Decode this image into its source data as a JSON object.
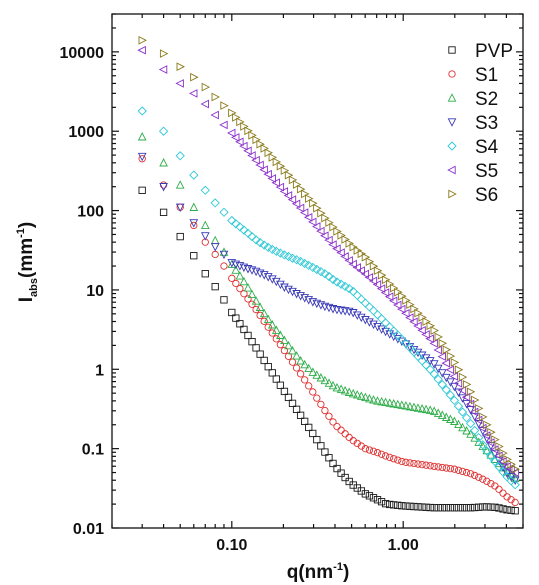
{
  "chart_data": {
    "type": "scatter",
    "x_scale": "log",
    "y_scale": "log",
    "xlabel": {
      "main": "q(nm",
      "sup": "-1",
      "end": ")"
    },
    "ylabel": {
      "main": "I",
      "sub": "abs",
      "mid": "(mm",
      "sup": "-1",
      "end": ")"
    },
    "xlim": [
      0.02,
      5
    ],
    "ylim": [
      0.01,
      30000
    ],
    "x_ticks": [
      {
        "value": 0.1,
        "label": "0.10"
      },
      {
        "value": 1,
        "label": "1.00"
      }
    ],
    "y_ticks": [
      {
        "value": 0.01,
        "label": "0.01"
      },
      {
        "value": 0.1,
        "label": "0.1"
      },
      {
        "value": 1,
        "label": "1"
      },
      {
        "value": 10,
        "label": "10"
      },
      {
        "value": 100,
        "label": "100"
      },
      {
        "value": 1000,
        "label": "1000"
      },
      {
        "value": 10000,
        "label": "10000"
      }
    ],
    "grid": false,
    "legend_position": "top-right",
    "series": [
      {
        "name": "PVP",
        "color": "#1a1a1a",
        "marker": "square",
        "points": [
          [
            0.03,
            180
          ],
          [
            0.04,
            95
          ],
          [
            0.05,
            47
          ],
          [
            0.06,
            27
          ],
          [
            0.07,
            16
          ],
          [
            0.08,
            11
          ],
          [
            0.09,
            7.5
          ],
          [
            0.1,
            5.2
          ],
          [
            0.12,
            3.0
          ],
          [
            0.14,
            1.8
          ],
          [
            0.16,
            1.15
          ],
          [
            0.18,
            0.78
          ],
          [
            0.2,
            0.55
          ],
          [
            0.25,
            0.27
          ],
          [
            0.3,
            0.15
          ],
          [
            0.35,
            0.09
          ],
          [
            0.4,
            0.06
          ],
          [
            0.45,
            0.045
          ],
          [
            0.5,
            0.036
          ],
          [
            0.6,
            0.027
          ],
          [
            0.7,
            0.023
          ],
          [
            0.8,
            0.02
          ],
          [
            1.0,
            0.019
          ],
          [
            1.5,
            0.018
          ],
          [
            2.0,
            0.018
          ],
          [
            2.5,
            0.018
          ],
          [
            3.0,
            0.0185
          ],
          [
            3.5,
            0.0182
          ],
          [
            4.0,
            0.017
          ],
          [
            4.5,
            0.0165
          ]
        ]
      },
      {
        "name": "S1",
        "color": "#e03030",
        "marker": "circle",
        "points": [
          [
            0.03,
            450
          ],
          [
            0.04,
            210
          ],
          [
            0.05,
            110
          ],
          [
            0.06,
            65
          ],
          [
            0.07,
            40
          ],
          [
            0.08,
            28
          ],
          [
            0.09,
            20
          ],
          [
            0.1,
            14
          ],
          [
            0.12,
            8.5
          ],
          [
            0.14,
            5.5
          ],
          [
            0.16,
            3.6
          ],
          [
            0.18,
            2.5
          ],
          [
            0.2,
            1.8
          ],
          [
            0.25,
            0.9
          ],
          [
            0.3,
            0.5
          ],
          [
            0.35,
            0.3
          ],
          [
            0.4,
            0.2
          ],
          [
            0.5,
            0.13
          ],
          [
            0.6,
            0.1
          ],
          [
            0.7,
            0.09
          ],
          [
            0.8,
            0.08
          ],
          [
            1.0,
            0.068
          ],
          [
            1.5,
            0.06
          ],
          [
            2.0,
            0.055
          ],
          [
            2.5,
            0.048
          ],
          [
            3.0,
            0.04
          ],
          [
            3.5,
            0.033
          ],
          [
            4.0,
            0.025
          ],
          [
            4.5,
            0.021
          ]
        ]
      },
      {
        "name": "S2",
        "color": "#2fae4a",
        "marker": "triangle-up",
        "points": [
          [
            0.03,
            850
          ],
          [
            0.04,
            400
          ],
          [
            0.05,
            210
          ],
          [
            0.06,
            110
          ],
          [
            0.07,
            65
          ],
          [
            0.08,
            42
          ],
          [
            0.09,
            30
          ],
          [
            0.1,
            21
          ],
          [
            0.12,
            12
          ],
          [
            0.14,
            7
          ],
          [
            0.16,
            4.5
          ],
          [
            0.18,
            3.2
          ],
          [
            0.2,
            2.4
          ],
          [
            0.25,
            1.3
          ],
          [
            0.3,
            0.9
          ],
          [
            0.35,
            0.72
          ],
          [
            0.4,
            0.6
          ],
          [
            0.5,
            0.5
          ],
          [
            0.7,
            0.4
          ],
          [
            1.0,
            0.35
          ],
          [
            1.5,
            0.3
          ],
          [
            2.0,
            0.22
          ],
          [
            2.5,
            0.15
          ],
          [
            3.0,
            0.1
          ],
          [
            3.5,
            0.07
          ],
          [
            4.0,
            0.052
          ],
          [
            4.5,
            0.042
          ]
        ]
      },
      {
        "name": "S3",
        "color": "#3a3ab8",
        "marker": "triangle-down",
        "points": [
          [
            0.03,
            480
          ],
          [
            0.04,
            200
          ],
          [
            0.05,
            110
          ],
          [
            0.06,
            70
          ],
          [
            0.07,
            48
          ],
          [
            0.08,
            35
          ],
          [
            0.09,
            28
          ],
          [
            0.1,
            22
          ],
          [
            0.12,
            19
          ],
          [
            0.14,
            17
          ],
          [
            0.16,
            15
          ],
          [
            0.18,
            13
          ],
          [
            0.2,
            11
          ],
          [
            0.25,
            8.5
          ],
          [
            0.3,
            7
          ],
          [
            0.35,
            6.2
          ],
          [
            0.4,
            5.7
          ],
          [
            0.5,
            5.3
          ],
          [
            0.7,
            3.5
          ],
          [
            1.0,
            2.2
          ],
          [
            1.5,
            1.2
          ],
          [
            2.0,
            0.6
          ],
          [
            2.5,
            0.3
          ],
          [
            3.0,
            0.15
          ],
          [
            3.5,
            0.08
          ],
          [
            4.0,
            0.05
          ],
          [
            4.5,
            0.04
          ]
        ]
      },
      {
        "name": "S4",
        "color": "#2cc9d6",
        "marker": "diamond",
        "points": [
          [
            0.03,
            1800
          ],
          [
            0.04,
            1000
          ],
          [
            0.05,
            490
          ],
          [
            0.06,
            280
          ],
          [
            0.07,
            180
          ],
          [
            0.08,
            125
          ],
          [
            0.09,
            95
          ],
          [
            0.1,
            75
          ],
          [
            0.12,
            55
          ],
          [
            0.14,
            42
          ],
          [
            0.16,
            35
          ],
          [
            0.18,
            31
          ],
          [
            0.2,
            28
          ],
          [
            0.25,
            23
          ],
          [
            0.3,
            19
          ],
          [
            0.35,
            16
          ],
          [
            0.4,
            13
          ],
          [
            0.5,
            10
          ],
          [
            0.7,
            5
          ],
          [
            1.0,
            2.3
          ],
          [
            1.5,
            0.9
          ],
          [
            2.0,
            0.4
          ],
          [
            2.5,
            0.2
          ],
          [
            3.0,
            0.1
          ],
          [
            3.5,
            0.065
          ],
          [
            4.0,
            0.045
          ],
          [
            4.5,
            0.035
          ]
        ]
      },
      {
        "name": "S5",
        "color": "#8a2fc9",
        "marker": "triangle-left",
        "points": [
          [
            0.03,
            10500
          ],
          [
            0.04,
            6000
          ],
          [
            0.05,
            4000
          ],
          [
            0.06,
            3000
          ],
          [
            0.07,
            2200
          ],
          [
            0.08,
            1600
          ],
          [
            0.09,
            1200
          ],
          [
            0.1,
            950
          ],
          [
            0.12,
            620
          ],
          [
            0.14,
            420
          ],
          [
            0.16,
            300
          ],
          [
            0.18,
            230
          ],
          [
            0.2,
            180
          ],
          [
            0.25,
            110
          ],
          [
            0.3,
            70
          ],
          [
            0.35,
            48
          ],
          [
            0.4,
            35
          ],
          [
            0.5,
            22
          ],
          [
            0.6,
            16
          ],
          [
            0.7,
            12
          ],
          [
            0.8,
            9
          ],
          [
            1.0,
            5.5
          ],
          [
            1.5,
            2.2
          ],
          [
            2.0,
            0.8
          ],
          [
            2.5,
            0.35
          ],
          [
            3.0,
            0.16
          ],
          [
            3.5,
            0.09
          ],
          [
            4.0,
            0.06
          ],
          [
            4.5,
            0.05
          ]
        ]
      },
      {
        "name": "S6",
        "color": "#8a7a1a",
        "marker": "triangle-right",
        "points": [
          [
            0.03,
            14000
          ],
          [
            0.04,
            9500
          ],
          [
            0.05,
            6500
          ],
          [
            0.06,
            4800
          ],
          [
            0.07,
            3600
          ],
          [
            0.08,
            2700
          ],
          [
            0.09,
            2100
          ],
          [
            0.1,
            1700
          ],
          [
            0.12,
            1100
          ],
          [
            0.14,
            760
          ],
          [
            0.16,
            560
          ],
          [
            0.18,
            420
          ],
          [
            0.2,
            330
          ],
          [
            0.25,
            190
          ],
          [
            0.3,
            120
          ],
          [
            0.35,
            80
          ],
          [
            0.4,
            58
          ],
          [
            0.5,
            36
          ],
          [
            0.6,
            26
          ],
          [
            0.7,
            18
          ],
          [
            0.8,
            13
          ],
          [
            1.0,
            8
          ],
          [
            1.5,
            3.2
          ],
          [
            2.0,
            1.2
          ],
          [
            2.5,
            0.5
          ],
          [
            3.0,
            0.22
          ],
          [
            3.5,
            0.12
          ],
          [
            4.0,
            0.075
          ],
          [
            4.5,
            0.055
          ]
        ]
      }
    ]
  }
}
